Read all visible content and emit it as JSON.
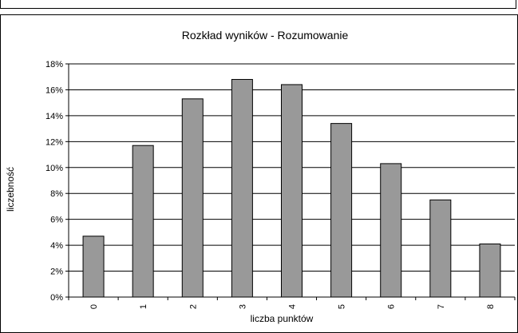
{
  "chart_data": {
    "type": "bar",
    "title": "Rozkład wyników - Rozumowanie",
    "xlabel": "liczba punktów",
    "ylabel": "liczebność",
    "categories": [
      "0",
      "1",
      "2",
      "3",
      "4",
      "5",
      "6",
      "7",
      "8"
    ],
    "values": [
      4.7,
      11.7,
      15.3,
      16.8,
      16.4,
      13.4,
      10.3,
      7.5,
      4.1
    ],
    "value_unit": "%",
    "ylim": [
      0,
      18
    ],
    "yticks": [
      "0%",
      "2%",
      "4%",
      "6%",
      "8%",
      "10%",
      "12%",
      "14%",
      "16%",
      "18%"
    ],
    "grid": "horizontal",
    "legend": "none",
    "colors": {
      "bar_fill": "#999999",
      "bar_stroke": "#000000",
      "gridline": "#000000",
      "axis": "#000000"
    }
  }
}
